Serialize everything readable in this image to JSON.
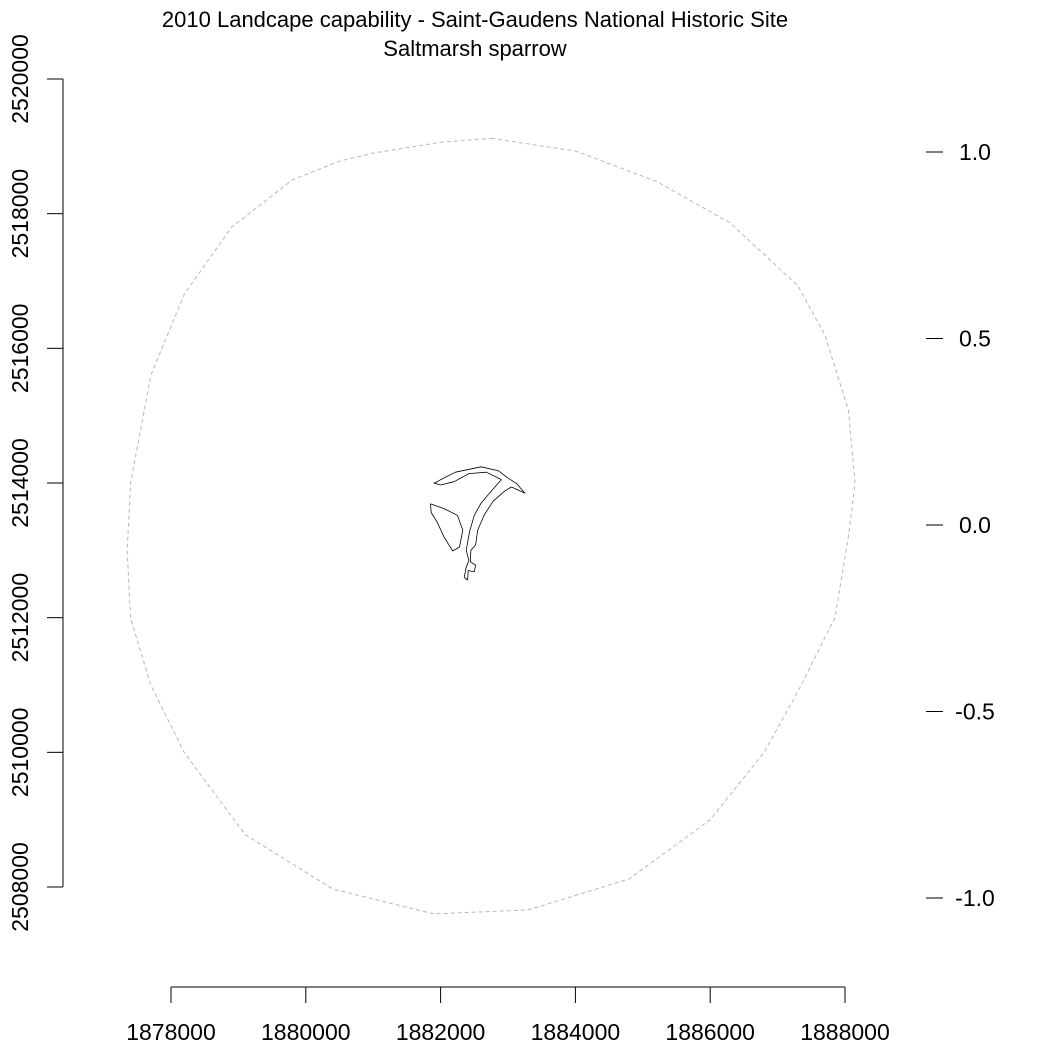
{
  "title": {
    "line1": "2010 Landcape capability - Saint-Gaudens National Historic Site",
    "line2": "Saltmarsh sparrow"
  },
  "chart_data": {
    "type": "map",
    "title": "2010 Landcape capability - Saint-Gaudens National Historic Site",
    "subtitle": "Saltmarsh sparrow",
    "x_axis": {
      "range": [
        1877000,
        1888500
      ],
      "ticks": [
        1878000,
        1880000,
        1882000,
        1884000,
        1886000,
        1888000
      ],
      "tick_labels": [
        "1878000",
        "1880000",
        "1882000",
        "1884000",
        "1886000",
        "1888000"
      ]
    },
    "y_axis": {
      "range": [
        2507000,
        2521000
      ],
      "ticks": [
        2508000,
        2510000,
        2512000,
        2514000,
        2516000,
        2518000,
        2520000
      ],
      "tick_labels": [
        "2508000",
        "2510000",
        "2512000",
        "2514000",
        "2516000",
        "2518000",
        "2520000"
      ]
    },
    "legend_scale": {
      "ticks": [
        1.0,
        0.5,
        0.0,
        -0.5,
        -1.0
      ],
      "tick_labels": [
        "1.0",
        "0.5",
        "0.0",
        "-0.5",
        "-1.0"
      ]
    },
    "buffer_outline": {
      "style": "dashed",
      "color": "#b8b8b8",
      "vertices": [
        [
          1882750,
          2519120
        ],
        [
          1884000,
          2518930
        ],
        [
          1885200,
          2518480
        ],
        [
          1886300,
          2517860
        ],
        [
          1887300,
          2516930
        ],
        [
          1887700,
          2516200
        ],
        [
          1888050,
          2515080
        ],
        [
          1888150,
          2514000
        ],
        [
          1888050,
          2513200
        ],
        [
          1887850,
          2512000
        ],
        [
          1887300,
          2510900
        ],
        [
          1886800,
          2510000
        ],
        [
          1886000,
          2509000
        ],
        [
          1884800,
          2508120
        ],
        [
          1883300,
          2507660
        ],
        [
          1881900,
          2507600
        ],
        [
          1880400,
          2507970
        ],
        [
          1879100,
          2508780
        ],
        [
          1878200,
          2509990
        ],
        [
          1877700,
          2511000
        ],
        [
          1877400,
          2511990
        ],
        [
          1877350,
          2513000
        ],
        [
          1877400,
          2514000
        ],
        [
          1877700,
          2515600
        ],
        [
          1878200,
          2516810
        ],
        [
          1878900,
          2517800
        ],
        [
          1879800,
          2518500
        ],
        [
          1880500,
          2518780
        ],
        [
          1881000,
          2518900
        ],
        [
          1882000,
          2519060
        ],
        [
          1882750,
          2519120
        ]
      ]
    },
    "park_boundary": {
      "color": "#000000",
      "polygons": [
        [
          [
            1881900,
            2514000
          ],
          [
            1882000,
            2513970
          ],
          [
            1882200,
            2514020
          ],
          [
            1882420,
            2514140
          ],
          [
            1882680,
            2514160
          ],
          [
            1882900,
            2514050
          ],
          [
            1882710,
            2513830
          ],
          [
            1882600,
            2513700
          ],
          [
            1882500,
            2513520
          ],
          [
            1882430,
            2513280
          ],
          [
            1882380,
            2513000
          ],
          [
            1882420,
            2512850
          ],
          [
            1882380,
            2512750
          ],
          [
            1882350,
            2512600
          ],
          [
            1882400,
            2512560
          ],
          [
            1882410,
            2512700
          ],
          [
            1882500,
            2512680
          ],
          [
            1882520,
            2512780
          ],
          [
            1882440,
            2512830
          ],
          [
            1882450,
            2513000
          ],
          [
            1882520,
            2513080
          ],
          [
            1882550,
            2513300
          ],
          [
            1882650,
            2513530
          ],
          [
            1882780,
            2513730
          ],
          [
            1882950,
            2513880
          ],
          [
            1883050,
            2513940
          ],
          [
            1883250,
            2513850
          ],
          [
            1883130,
            2513990
          ],
          [
            1882990,
            2514080
          ],
          [
            1882860,
            2514180
          ],
          [
            1882600,
            2514240
          ],
          [
            1882220,
            2514160
          ],
          [
            1882020,
            2514060
          ],
          [
            1881950,
            2514020
          ],
          [
            1881900,
            2514000
          ]
        ],
        [
          [
            1881850,
            2513690
          ],
          [
            1882050,
            2513620
          ],
          [
            1882250,
            2513520
          ],
          [
            1882330,
            2513300
          ],
          [
            1882280,
            2513050
          ],
          [
            1882180,
            2512990
          ],
          [
            1882050,
            2513200
          ],
          [
            1881950,
            2513420
          ],
          [
            1881860,
            2513560
          ],
          [
            1881850,
            2513690
          ]
        ]
      ]
    }
  }
}
